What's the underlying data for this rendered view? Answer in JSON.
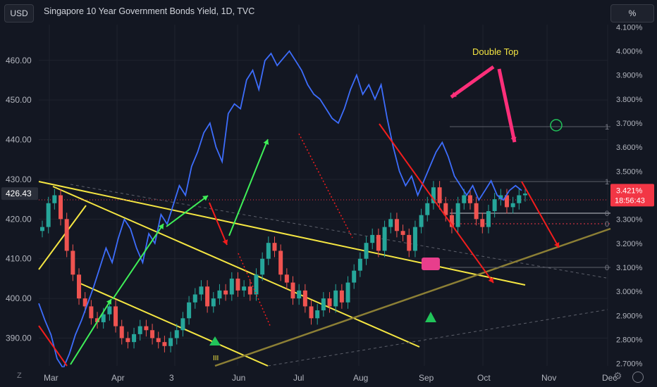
{
  "header": {
    "currency_label": "USD",
    "title": "Singapore 10 Year Government Bonds Yield, 1D, TVC",
    "scale_label": "%"
  },
  "footer": {
    "left_icon_label": "Z",
    "right_icon": "tradingview-logo-icon",
    "settings_icon": "gear-icon"
  },
  "colors": {
    "background": "#131722",
    "grid": "#1f232e",
    "bull_candle": "#26a69a",
    "bear_candle": "#ef5350",
    "bond_line": "#3d6dfc",
    "trend_yellow": "#f5e642",
    "trend_green": "#3ff058",
    "trend_red": "#f21d1d",
    "support_olive": "#8c7f35",
    "annotation_pink": "#ff2f7a"
  },
  "chart_data": {
    "type": "candlestick-with-line-overlay",
    "title": "Singapore 10 Year Government Bonds Yield, 1D, TVC",
    "x_ticks": [
      "Mar",
      "Apr",
      "3",
      "Jun",
      "Jul",
      "Aug",
      "Sep",
      "Oct",
      "Nov",
      "Dec"
    ],
    "left_axis": {
      "label": "USD",
      "ticks": [
        "460.00",
        "450.00",
        "440.00",
        "430.00",
        "420.00",
        "410.00",
        "400.00",
        "390.00"
      ],
      "ylim": [
        383,
        469
      ],
      "last_price": "426.43"
    },
    "right_axis": {
      "label": "%",
      "ticks": [
        "4.100%",
        "4.000%",
        "3.900%",
        "3.800%",
        "3.700%",
        "3.600%",
        "3.500%",
        "3.400%",
        "3.300%",
        "3.200%",
        "3.100%",
        "3.000%",
        "2.900%",
        "2.800%",
        "2.700%"
      ],
      "ylim": [
        2.69,
        4.11
      ],
      "last_value": "3.421%",
      "countdown": "18:56:43"
    },
    "fib_labels": [
      "1",
      "1",
      "0",
      "0",
      "0"
    ],
    "annotations": [
      {
        "text": "Double Top",
        "color": "#f5e642"
      }
    ],
    "markers": [
      {
        "type": "triangle-up",
        "color": "#21c45a"
      },
      {
        "type": "triangle-up",
        "color": "#21c45a"
      },
      {
        "type": "circle",
        "color": "#21c45a"
      },
      {
        "type": "label",
        "text": "III",
        "color": "#f5e642"
      }
    ],
    "bond_yield_series": {
      "name": "Singapore 10Y Yield (%)",
      "x_days": [
        0,
        3,
        6,
        9,
        12,
        15,
        18,
        21,
        24,
        27,
        30,
        33,
        36,
        39,
        42,
        45,
        48,
        51,
        54,
        57,
        60,
        63,
        66,
        69,
        72,
        75,
        78,
        81,
        84,
        87,
        90,
        93,
        96,
        99,
        102,
        105,
        108,
        111,
        114,
        117,
        120,
        123,
        126,
        129,
        132,
        135,
        138,
        141,
        144,
        147,
        150,
        153,
        156,
        159,
        162,
        165,
        168,
        171,
        174,
        177,
        180,
        183,
        186,
        189,
        192,
        195,
        198,
        201,
        204,
        207,
        210,
        213,
        216,
        219,
        222,
        225,
        228,
        231,
        234,
        237
      ],
      "values": [
        2.95,
        2.88,
        2.82,
        2.72,
        2.68,
        2.74,
        2.82,
        2.88,
        2.95,
        3.02,
        3.1,
        3.18,
        3.12,
        3.22,
        3.3,
        3.26,
        3.18,
        3.12,
        3.24,
        3.2,
        3.32,
        3.28,
        3.36,
        3.44,
        3.4,
        3.52,
        3.58,
        3.66,
        3.7,
        3.6,
        3.54,
        3.74,
        3.78,
        3.76,
        3.88,
        3.92,
        3.84,
        3.96,
        3.99,
        3.94,
        3.97,
        4.0,
        3.96,
        3.92,
        3.86,
        3.82,
        3.8,
        3.76,
        3.72,
        3.7,
        3.76,
        3.84,
        3.9,
        3.82,
        3.86,
        3.8,
        3.86,
        3.72,
        3.6,
        3.5,
        3.44,
        3.48,
        3.4,
        3.46,
        3.52,
        3.58,
        3.62,
        3.56,
        3.48,
        3.44,
        3.4,
        3.44,
        3.38,
        3.42,
        3.46,
        3.4,
        3.38,
        3.42,
        3.44,
        3.42
      ]
    },
    "price_series_ohlc_close": {
      "name": "Candles (USD)",
      "x_days": [
        0,
        3,
        6,
        9,
        12,
        15,
        18,
        21,
        24,
        27,
        30,
        33,
        36,
        39,
        42,
        45,
        48,
        51,
        54,
        57,
        60,
        63,
        66,
        69,
        72,
        75,
        78,
        81,
        84,
        87,
        90,
        93,
        96,
        99,
        102,
        105,
        108,
        111,
        114,
        117,
        120,
        123,
        126,
        129,
        132,
        135,
        138,
        141,
        144,
        147,
        150,
        153,
        156,
        159,
        162,
        165,
        168,
        171,
        174,
        177,
        180,
        183,
        186,
        189,
        192,
        195,
        198,
        201,
        204,
        207,
        210,
        213,
        216,
        219,
        222,
        225,
        228,
        231,
        234,
        237
      ],
      "values": [
        418,
        424,
        426,
        420,
        412,
        406,
        400,
        398,
        395,
        394,
        396,
        398,
        393,
        390,
        389,
        391,
        393,
        392,
        390,
        389,
        388,
        390,
        392,
        395,
        399,
        401,
        403,
        398,
        400,
        402,
        401,
        405,
        402,
        403,
        401,
        406,
        410,
        414,
        412,
        406,
        404,
        400,
        402,
        398,
        395,
        397,
        400,
        398,
        402,
        399,
        404,
        407,
        410,
        414,
        416,
        412,
        418,
        420,
        417,
        416,
        412,
        418,
        421,
        424,
        428,
        424,
        421,
        418,
        424,
        426,
        424,
        420,
        418,
        422,
        425,
        426,
        423,
        424,
        426,
        426.43
      ]
    }
  }
}
